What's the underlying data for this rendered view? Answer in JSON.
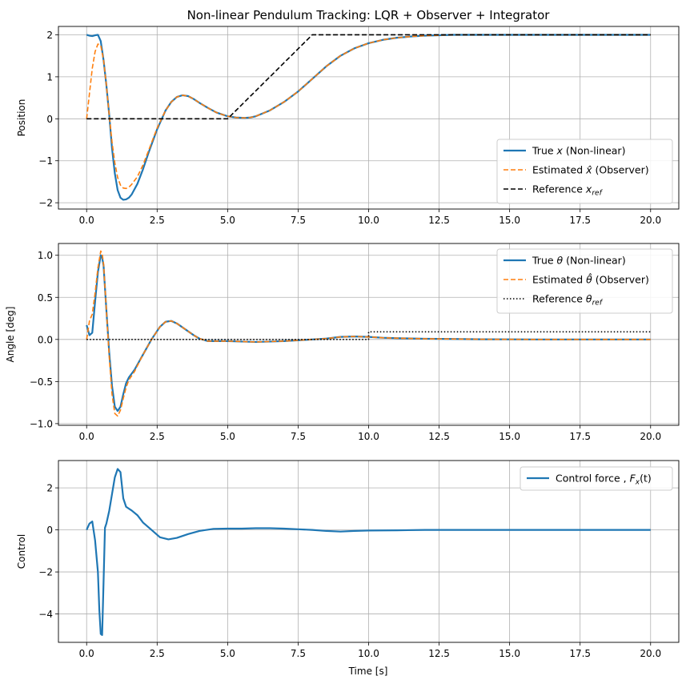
{
  "figure": {
    "title": "Non-linear Pendulum Tracking: LQR + Observer + Integrator",
    "xlabel": "Time [s]"
  },
  "colors": {
    "blue": "#1f77b4",
    "orange": "#ff7f0e",
    "black": "#000000",
    "grid": "#b0b0b0"
  },
  "chart_data": [
    {
      "type": "line",
      "title": "Non-linear Pendulum Tracking: LQR + Observer + Integrator",
      "ylabel": "Position",
      "xlim": [
        -1,
        21
      ],
      "ylim": [
        -2.15,
        2.2
      ],
      "xticks": [
        0,
        2.5,
        5,
        7.5,
        10,
        12.5,
        15,
        17.5,
        20
      ],
      "xtick_labels": [
        "0.0",
        "2.5",
        "5.0",
        "7.5",
        "10.0",
        "12.5",
        "15.0",
        "17.5",
        "20.0"
      ],
      "yticks": [
        -2,
        -1,
        0,
        1,
        2
      ],
      "ytick_labels": [
        "−2",
        "−1",
        "0",
        "1",
        "2"
      ],
      "grid": true,
      "legend": "lower-right",
      "series": [
        {
          "name": "True x (Non-linear)",
          "legend_main": "True ",
          "legend_sym": "x",
          "legend_tail": " (Non-linear)",
          "color": "#1f77b4",
          "style": "solid",
          "x": [
            0,
            0.1,
            0.2,
            0.3,
            0.4,
            0.5,
            0.6,
            0.7,
            0.8,
            0.9,
            1.0,
            1.1,
            1.2,
            1.3,
            1.4,
            1.5,
            1.6,
            1.8,
            2.0,
            2.2,
            2.5,
            2.8,
            3.0,
            3.2,
            3.4,
            3.6,
            3.8,
            4.0,
            4.3,
            4.6,
            5.0,
            5.3,
            5.6,
            5.8,
            6.0,
            6.5,
            7.0,
            7.5,
            8.0,
            8.5,
            9.0,
            9.5,
            10.0,
            10.5,
            11.0,
            11.5,
            12.0,
            12.5,
            13.0,
            14.0,
            15.0,
            16.0,
            17.0,
            18.0,
            19.0,
            20.0
          ],
          "y": [
            2.0,
            1.98,
            1.97,
            1.99,
            2.0,
            1.85,
            1.4,
            0.8,
            0.1,
            -0.7,
            -1.3,
            -1.7,
            -1.88,
            -1.93,
            -1.92,
            -1.88,
            -1.8,
            -1.55,
            -1.2,
            -0.8,
            -0.25,
            0.2,
            0.4,
            0.52,
            0.56,
            0.54,
            0.47,
            0.38,
            0.26,
            0.15,
            0.06,
            0.03,
            0.02,
            0.03,
            0.06,
            0.2,
            0.4,
            0.65,
            0.95,
            1.25,
            1.5,
            1.68,
            1.8,
            1.88,
            1.93,
            1.96,
            1.98,
            1.99,
            2.0,
            2.0,
            2.0,
            2.0,
            2.0,
            2.0,
            2.0,
            2.0
          ]
        },
        {
          "name": "Estimated x̂ (Observer)",
          "legend_main": "Estimated ",
          "legend_sym": "x̂",
          "legend_tail": " (Observer)",
          "color": "#ff7f0e",
          "style": "dashed",
          "x": [
            0,
            0.1,
            0.2,
            0.3,
            0.4,
            0.5,
            0.6,
            0.7,
            0.8,
            0.9,
            1.0,
            1.1,
            1.2,
            1.3,
            1.4,
            1.5,
            1.6,
            1.8,
            2.0,
            2.2,
            2.5,
            2.8,
            3.0,
            3.2,
            3.4,
            3.6,
            3.8,
            4.0,
            4.3,
            4.6,
            5.0,
            5.3,
            5.6,
            5.8,
            6.0,
            6.5,
            7.0,
            7.5,
            8.0,
            8.5,
            9.0,
            9.5,
            10.0,
            10.5,
            11.0,
            11.5,
            12.0,
            12.5,
            13.0,
            14.0,
            15.0,
            16.0,
            17.0,
            18.0,
            19.0,
            20.0
          ],
          "y": [
            0.0,
            0.6,
            1.2,
            1.6,
            1.78,
            1.75,
            1.4,
            0.8,
            0.1,
            -0.55,
            -1.05,
            -1.4,
            -1.58,
            -1.65,
            -1.66,
            -1.63,
            -1.56,
            -1.38,
            -1.1,
            -0.75,
            -0.22,
            0.2,
            0.4,
            0.52,
            0.56,
            0.54,
            0.47,
            0.38,
            0.26,
            0.15,
            0.06,
            0.03,
            0.02,
            0.03,
            0.06,
            0.2,
            0.4,
            0.65,
            0.95,
            1.25,
            1.5,
            1.68,
            1.8,
            1.88,
            1.93,
            1.96,
            1.98,
            1.99,
            2.0,
            2.0,
            2.0,
            2.0,
            2.0,
            2.0,
            2.0,
            2.0
          ]
        },
        {
          "name": "Reference x_ref",
          "legend_main": "Reference ",
          "legend_sym": "x",
          "legend_sub": "ref",
          "legend_tail": "",
          "color": "#000000",
          "style": "dashed",
          "x": [
            0,
            5,
            8,
            20
          ],
          "y": [
            0,
            0,
            2,
            2
          ]
        }
      ]
    },
    {
      "type": "line",
      "title": "",
      "ylabel": "Angle [deg]",
      "xlim": [
        -1,
        21
      ],
      "ylim": [
        -1.02,
        1.14
      ],
      "xticks": [
        0,
        2.5,
        5,
        7.5,
        10,
        12.5,
        15,
        17.5,
        20
      ],
      "xtick_labels": [
        "0.0",
        "2.5",
        "5.0",
        "7.5",
        "10.0",
        "12.5",
        "15.0",
        "17.5",
        "20.0"
      ],
      "yticks": [
        -1.0,
        -0.5,
        0.0,
        0.5,
        1.0
      ],
      "ytick_labels": [
        "−1.0",
        "−0.5",
        "0.0",
        "0.5",
        "1.0"
      ],
      "grid": true,
      "legend": "upper-right",
      "series": [
        {
          "name": "True θ (Non-linear)",
          "legend_main": "True ",
          "legend_sym": "θ",
          "legend_tail": " (Non-linear)",
          "color": "#1f77b4",
          "style": "solid",
          "x": [
            0,
            0.1,
            0.2,
            0.3,
            0.4,
            0.5,
            0.55,
            0.6,
            0.7,
            0.8,
            0.9,
            1.0,
            1.1,
            1.2,
            1.3,
            1.4,
            1.5,
            1.7,
            2.0,
            2.3,
            2.6,
            2.8,
            3.0,
            3.2,
            3.5,
            3.8,
            4.0,
            4.3,
            4.6,
            5.0,
            5.5,
            6.0,
            6.5,
            7.0,
            7.5,
            8.0,
            8.5,
            9.0,
            9.5,
            10.0,
            10.5,
            11.0,
            12.0,
            13.0,
            14.0,
            16.0,
            18.0,
            20.0
          ],
          "y": [
            0.17,
            0.05,
            0.08,
            0.45,
            0.8,
            1.0,
            0.97,
            0.88,
            0.35,
            -0.15,
            -0.55,
            -0.8,
            -0.85,
            -0.8,
            -0.65,
            -0.52,
            -0.45,
            -0.36,
            -0.18,
            0.0,
            0.15,
            0.21,
            0.22,
            0.19,
            0.12,
            0.05,
            0.01,
            -0.02,
            -0.02,
            -0.02,
            -0.025,
            -0.03,
            -0.025,
            -0.02,
            -0.01,
            0.0,
            0.01,
            0.03,
            0.035,
            0.03,
            0.02,
            0.015,
            0.008,
            0.005,
            0.002,
            0.0,
            0.0,
            0.0
          ]
        },
        {
          "name": "Estimated θ̂ (Observer)",
          "legend_main": "Estimated ",
          "legend_sym": "θ̂",
          "legend_tail": " (Observer)",
          "color": "#ff7f0e",
          "style": "dashed",
          "x": [
            0,
            0.1,
            0.2,
            0.3,
            0.4,
            0.5,
            0.55,
            0.6,
            0.7,
            0.8,
            0.9,
            1.0,
            1.1,
            1.2,
            1.3,
            1.4,
            1.5,
            1.7,
            2.0,
            2.3,
            2.6,
            2.8,
            3.0,
            3.2,
            3.5,
            3.8,
            4.0,
            4.3,
            4.6,
            5.0,
            5.5,
            6.0,
            6.5,
            7.0,
            7.5,
            8.0,
            8.5,
            9.0,
            9.5,
            10.0,
            10.5,
            11.0,
            12.0,
            13.0,
            14.0,
            16.0,
            18.0,
            20.0
          ],
          "y": [
            0.0,
            0.22,
            0.3,
            0.55,
            0.85,
            1.05,
            1.02,
            0.9,
            0.35,
            -0.2,
            -0.65,
            -0.88,
            -0.91,
            -0.84,
            -0.7,
            -0.57,
            -0.48,
            -0.38,
            -0.18,
            0.0,
            0.15,
            0.21,
            0.22,
            0.19,
            0.12,
            0.05,
            0.01,
            -0.02,
            -0.02,
            -0.02,
            -0.025,
            -0.03,
            -0.025,
            -0.02,
            -0.01,
            0.0,
            0.01,
            0.03,
            0.035,
            0.03,
            0.02,
            0.015,
            0.008,
            0.005,
            0.002,
            0.0,
            0.0,
            0.0
          ]
        },
        {
          "name": "Reference θ_ref",
          "legend_main": "Reference ",
          "legend_sym": "θ",
          "legend_sub": "ref",
          "legend_tail": "",
          "color": "#000000",
          "style": "dotted",
          "x": [
            0,
            10,
            10,
            20
          ],
          "y": [
            0,
            0,
            0.09,
            0.09
          ]
        }
      ]
    },
    {
      "type": "line",
      "title": "",
      "ylabel": "Control",
      "xlabel": "Time [s]",
      "xlim": [
        -1,
        21
      ],
      "ylim": [
        -5.35,
        3.3
      ],
      "xticks": [
        0,
        2.5,
        5,
        7.5,
        10,
        12.5,
        15,
        17.5,
        20
      ],
      "xtick_labels": [
        "0.0",
        "2.5",
        "5.0",
        "7.5",
        "10.0",
        "12.5",
        "15.0",
        "17.5",
        "20.0"
      ],
      "yticks": [
        -4,
        -2,
        0,
        2
      ],
      "ytick_labels": [
        "−4",
        "−2",
        "0",
        "2"
      ],
      "grid": true,
      "legend": "upper-right",
      "series": [
        {
          "name": "Control force , F_x(t)",
          "legend_main": "Control force , ",
          "legend_sym": "F",
          "legend_sub": "x",
          "legend_tail": "(t)",
          "color": "#1f77b4",
          "style": "solid",
          "x": [
            0,
            0.1,
            0.2,
            0.3,
            0.4,
            0.45,
            0.5,
            0.55,
            0.6,
            0.65,
            0.7,
            0.8,
            0.9,
            1.0,
            1.1,
            1.2,
            1.3,
            1.4,
            1.6,
            1.8,
            2.0,
            2.3,
            2.6,
            2.9,
            3.2,
            3.6,
            4.0,
            4.5,
            5.0,
            5.5,
            6.0,
            6.5,
            7.0,
            7.5,
            8.0,
            8.5,
            9.0,
            9.5,
            10.0,
            11.0,
            12.0,
            13.0,
            14.0,
            16.0,
            18.0,
            20.0
          ],
          "y": [
            0.0,
            0.3,
            0.4,
            -0.5,
            -2.0,
            -3.8,
            -4.95,
            -5.0,
            -2.5,
            0.1,
            0.3,
            0.9,
            1.7,
            2.5,
            2.9,
            2.75,
            1.5,
            1.1,
            0.92,
            0.7,
            0.35,
            0.0,
            -0.35,
            -0.45,
            -0.38,
            -0.2,
            -0.05,
            0.05,
            0.06,
            0.06,
            0.08,
            0.08,
            0.06,
            0.03,
            0.0,
            -0.05,
            -0.08,
            -0.05,
            -0.03,
            -0.02,
            0.0,
            0.0,
            0.0,
            0.0,
            0.0,
            0.0
          ]
        }
      ]
    }
  ]
}
